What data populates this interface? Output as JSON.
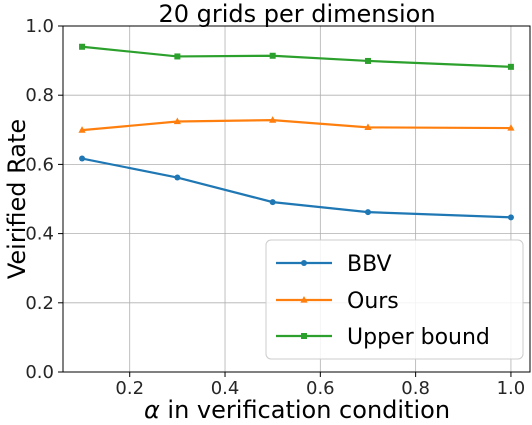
{
  "chart_data": {
    "type": "line",
    "title": "20 grids per dimension",
    "xlabel_symbol": "α",
    "xlabel_rest": " in verification condition",
    "ylabel": "Veirified Rate",
    "x": [
      0.1,
      0.3,
      0.5,
      0.7,
      1.0
    ],
    "xlim": [
      0.06,
      1.04
    ],
    "ylim": [
      0.0,
      1.0
    ],
    "xticks": [
      0.2,
      0.4,
      0.6,
      0.8,
      1.0
    ],
    "xtick_labels": [
      "0.2",
      "0.4",
      "0.6",
      "0.8",
      "1.0"
    ],
    "yticks": [
      0.0,
      0.2,
      0.4,
      0.6,
      0.8,
      1.0
    ],
    "ytick_labels": [
      "0.0",
      "0.2",
      "0.4",
      "0.6",
      "0.8",
      "1.0"
    ],
    "grid": true,
    "legend_position": "lower-right",
    "series": [
      {
        "name": "BBV",
        "marker": "circle",
        "color": "#1f77b4",
        "values": [
          0.617,
          0.562,
          0.491,
          0.462,
          0.447
        ]
      },
      {
        "name": "Ours",
        "marker": "triangle",
        "color": "#ff7f0e",
        "values": [
          0.699,
          0.724,
          0.728,
          0.707,
          0.705
        ]
      },
      {
        "name": "Upper bound",
        "marker": "square",
        "color": "#2ca02c",
        "values": [
          0.94,
          0.912,
          0.914,
          0.899,
          0.882
        ]
      }
    ]
  }
}
